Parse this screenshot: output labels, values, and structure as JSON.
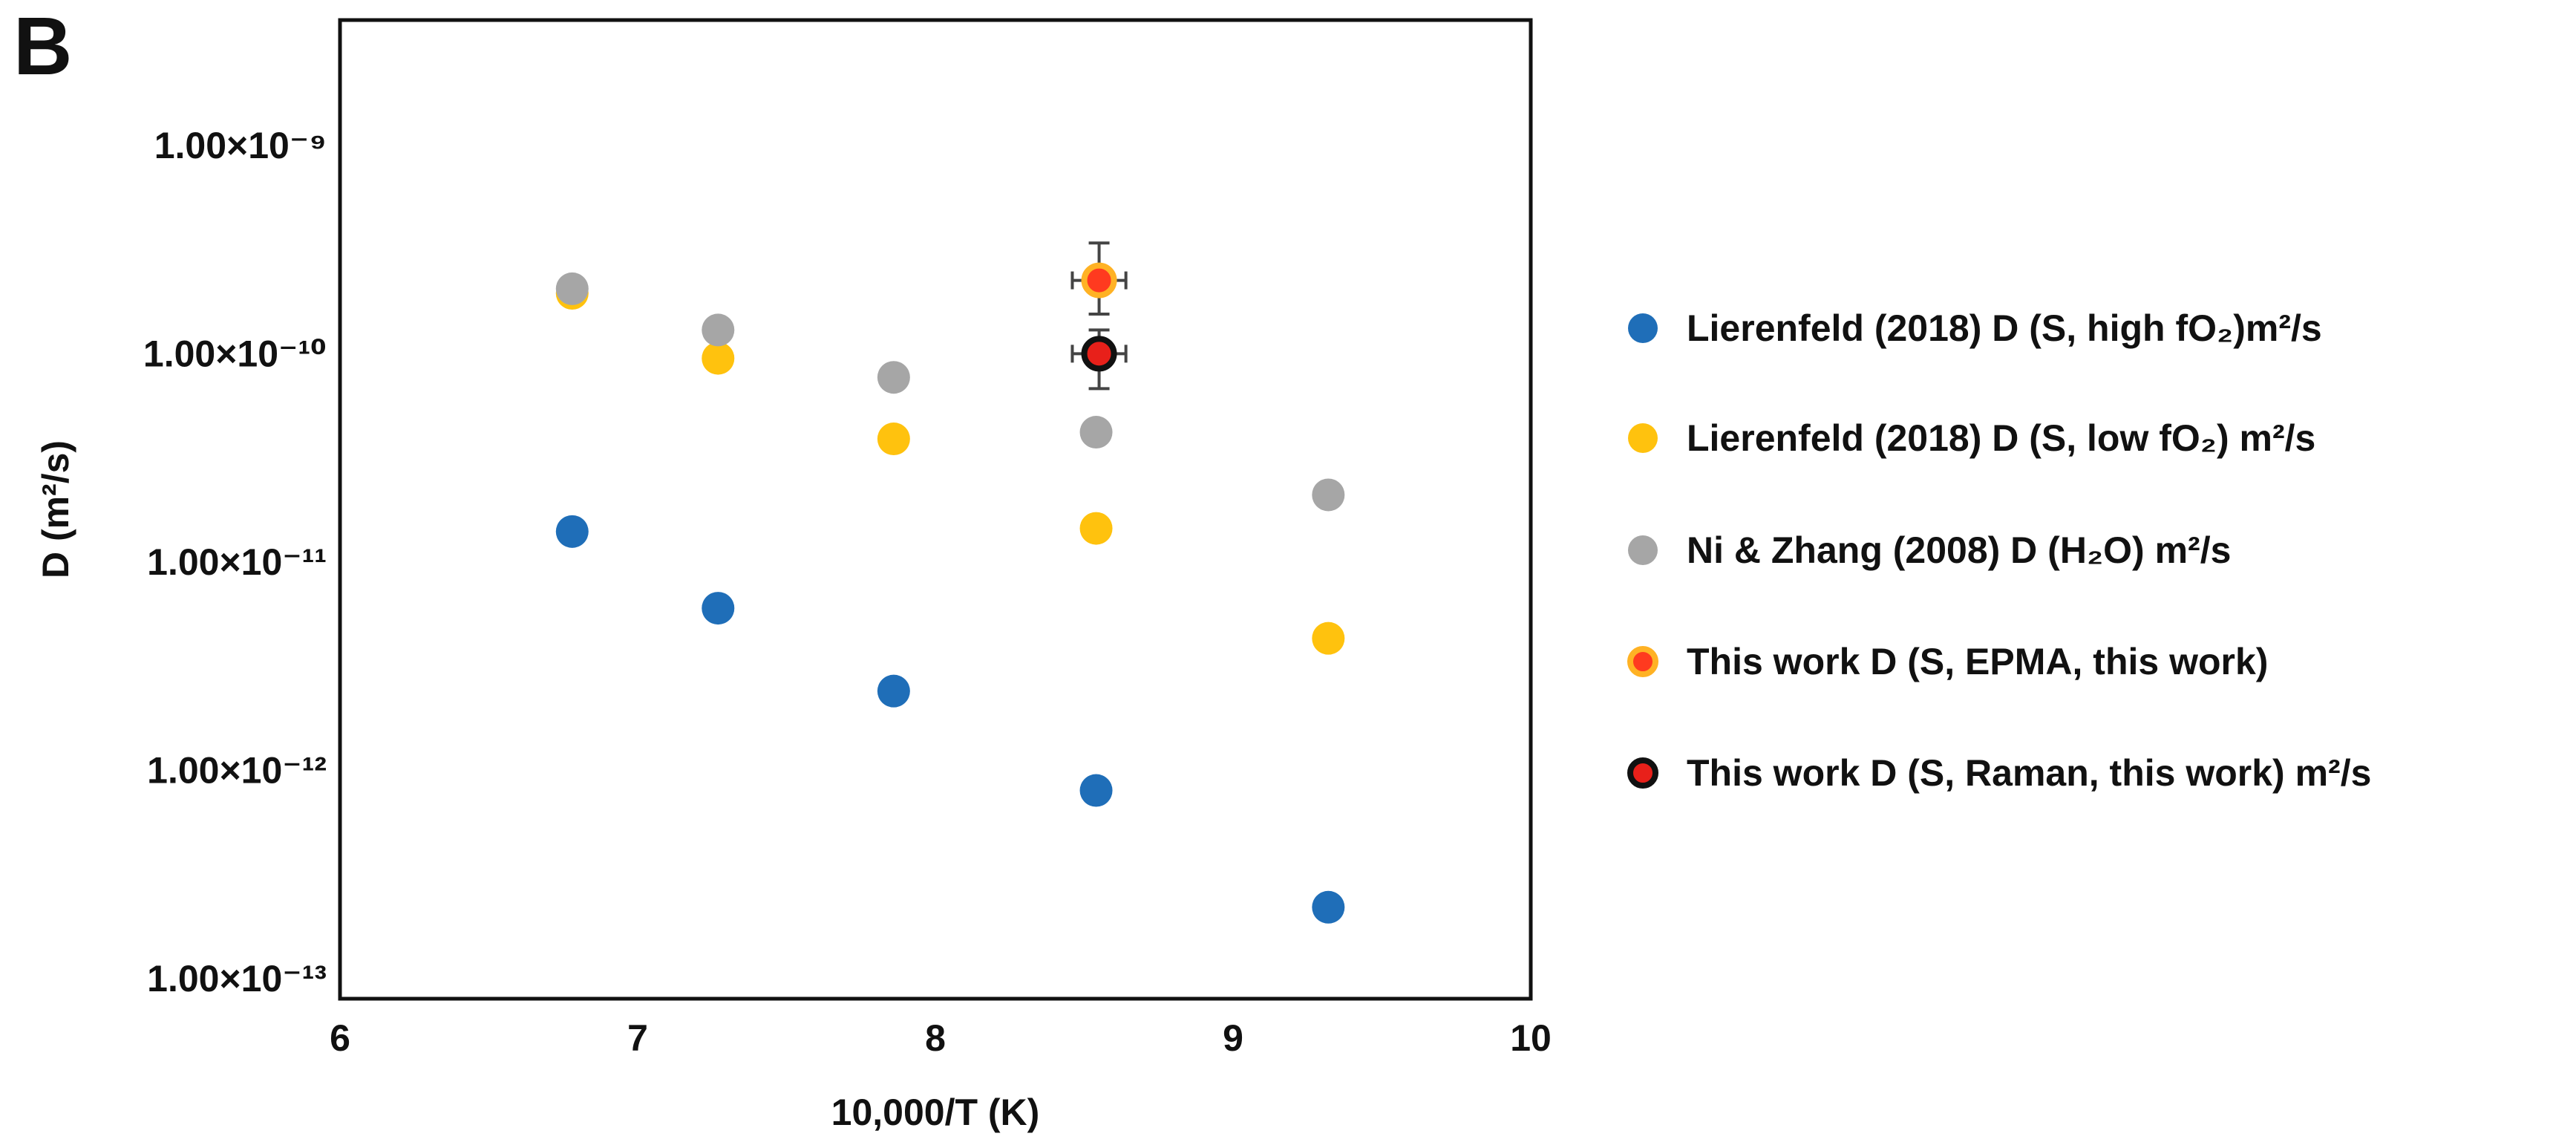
{
  "chart_data": {
    "type": "scatter",
    "panel_label": "B",
    "xlabel": "10,000/T (K)",
    "ylabel": "D (m²/s)",
    "x_scale": "linear",
    "y_scale": "log",
    "xlim": [
      6,
      10
    ],
    "ylim": [
      8e-14,
      4e-09
    ],
    "x_ticks": [
      6,
      7,
      8,
      9,
      10
    ],
    "y_ticks": [
      1e-13,
      1e-12,
      1e-11,
      1e-10,
      1e-09
    ],
    "y_tick_labels": [
      "1.00×10⁻¹³",
      "1.00×10⁻¹²",
      "1.00×10⁻¹¹",
      "1.00×10⁻¹⁰",
      "1.00×10⁻⁹"
    ],
    "grid": false,
    "legend_position": "right-outside",
    "series": [
      {
        "name": "Lierenfeld (2018) D (S, high fO₂)m²/s",
        "color": "#1f6eb8",
        "edge_color": "#1f6eb8",
        "points": [
          {
            "x": 6.78,
            "y": 1.4e-11
          },
          {
            "x": 7.27,
            "y": 6e-12
          },
          {
            "x": 7.86,
            "y": 2.4e-12
          },
          {
            "x": 8.54,
            "y": 8e-13
          },
          {
            "x": 9.32,
            "y": 2.2e-13
          }
        ]
      },
      {
        "name": "Lierenfeld (2018) D (S, low fO₂) m²/s",
        "color": "#ffc20e",
        "edge_color": "#ffc20e",
        "points": [
          {
            "x": 6.78,
            "y": 1.95e-10
          },
          {
            "x": 7.27,
            "y": 9.5e-11
          },
          {
            "x": 7.86,
            "y": 3.9e-11
          },
          {
            "x": 8.54,
            "y": 1.45e-11
          },
          {
            "x": 9.32,
            "y": 4.3e-12
          }
        ]
      },
      {
        "name": "Ni & Zhang (2008) D (H₂O) m²/s",
        "color": "#a6a6a6",
        "edge_color": "#a6a6a6",
        "points": [
          {
            "x": 6.78,
            "y": 2.05e-10
          },
          {
            "x": 7.27,
            "y": 1.3e-10
          },
          {
            "x": 7.86,
            "y": 7.7e-11
          },
          {
            "x": 8.54,
            "y": 4.2e-11
          },
          {
            "x": 9.32,
            "y": 2.1e-11
          }
        ]
      },
      {
        "name": "This work D (S, EPMA, this work)",
        "color": "#ff3a1f",
        "edge_color": "#ffb224",
        "points": [
          {
            "x": 8.55,
            "y": 2.25e-10,
            "xerr": 0.09,
            "y_low": 1.55e-10,
            "y_high": 3.4e-10
          }
        ]
      },
      {
        "name": "This work D (S, Raman, this work) m²/s",
        "color": "#e8201a",
        "edge_color": "#111111",
        "points": [
          {
            "x": 8.55,
            "y": 1e-10,
            "xerr": 0.09,
            "y_low": 6.8e-11,
            "y_high": 1.3e-10
          }
        ]
      }
    ]
  }
}
